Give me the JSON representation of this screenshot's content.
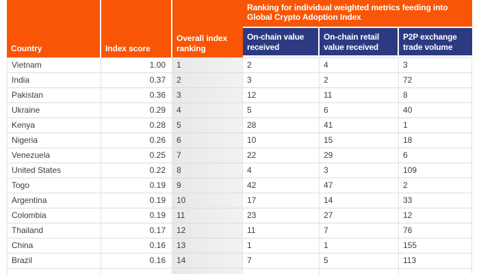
{
  "colors": {
    "header_orange": "#F85606",
    "subheader_navy": "#2C3A82",
    "ranking_column_bg": "#ECECEC"
  },
  "chart_data": {
    "type": "table",
    "group_header": "Ranking for individual weighted metrics feeding into Global Crypto Adoption Index",
    "columns": [
      "Country",
      "Index score",
      "Overall index ranking",
      "On-chain value received",
      "On-chain retail value received",
      "P2P exchange trade volume"
    ],
    "rows": [
      [
        "Vietnam",
        "1.00",
        "1",
        "2",
        "4",
        "3"
      ],
      [
        "India",
        "0.37",
        "2",
        "3",
        "2",
        "72"
      ],
      [
        "Pakistan",
        "0.36",
        "3",
        "12",
        "11",
        "8"
      ],
      [
        "Ukraine",
        "0.29",
        "4",
        "5",
        "6",
        "40"
      ],
      [
        "Kenya",
        "0.28",
        "5",
        "28",
        "41",
        "1"
      ],
      [
        "Nigeria",
        "0.26",
        "6",
        "10",
        "15",
        "18"
      ],
      [
        "Venezuela",
        "0.25",
        "7",
        "22",
        "29",
        "6"
      ],
      [
        "United States",
        "0.22",
        "8",
        "4",
        "3",
        "109"
      ],
      [
        "Togo",
        "0.19",
        "9",
        "42",
        "47",
        "2"
      ],
      [
        "Argentina",
        "0.19",
        "10",
        "17",
        "14",
        "33"
      ],
      [
        "Colombia",
        "0.19",
        "11",
        "23",
        "27",
        "12"
      ],
      [
        "Thailand",
        "0.17",
        "12",
        "11",
        "7",
        "76"
      ],
      [
        "China",
        "0.16",
        "13",
        "1",
        "1",
        "155"
      ],
      [
        "Brazil",
        "0.16",
        "14",
        "7",
        "5",
        "113"
      ]
    ]
  }
}
